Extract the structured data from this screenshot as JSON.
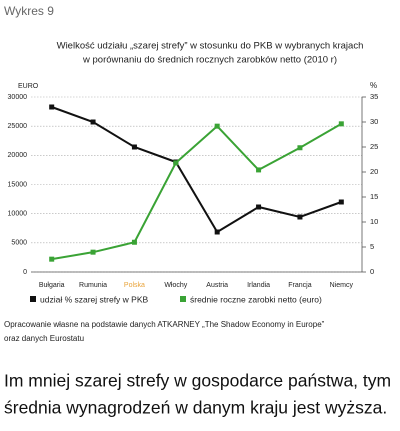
{
  "header": "Wykres 9",
  "chart_data": {
    "type": "line",
    "title": [
      "Wielkość udziału „szarej strefy” w stosunku do PKB w wybranych krajach",
      "w porównaniu do średnich rocznych zarobków netto (2010 r)"
    ],
    "y_label": "EURO",
    "y2_label": "%",
    "categories": [
      "Bułgaria",
      "Rumunia",
      "Polska",
      "Włochy",
      "Austria",
      "Irlandia",
      "Francja",
      "Niemcy"
    ],
    "category_label_colors": [
      "#222222",
      "#222222",
      "#e8a33a",
      "#222222",
      "#222222",
      "#222222",
      "#222222",
      "#222222"
    ],
    "series": [
      {
        "name": "udział % szarej strefy w PKB",
        "color": "#111111",
        "axis": "y2",
        "values": [
          33,
          30,
          25,
          22,
          8,
          13,
          11,
          14
        ]
      },
      {
        "name": "średnie roczne zarobki netto (euro)",
        "color": "#3aa335",
        "axis": "y",
        "values": [
          2200,
          3400,
          5100,
          18700,
          25000,
          17500,
          21300,
          25400
        ]
      }
    ],
    "ylim": [
      0,
      30000
    ],
    "yticks": [
      0,
      5000,
      10000,
      15000,
      20000,
      25000,
      30000
    ],
    "y2lim": [
      0,
      35
    ],
    "y2ticks": [
      0,
      5,
      10,
      15,
      20,
      25,
      30,
      35
    ],
    "grid": true
  },
  "source": [
    "Opracowanie własne na podstawie danych ATKARNEY „The Shadow Economy in Europe”",
    "oraz danych Eurostatu"
  ],
  "caption": [
    "Im mniej szarej strefy w gospodarce państwa, tym",
    "średnia wynagrodzeń w danym kraju jest wyższa."
  ]
}
